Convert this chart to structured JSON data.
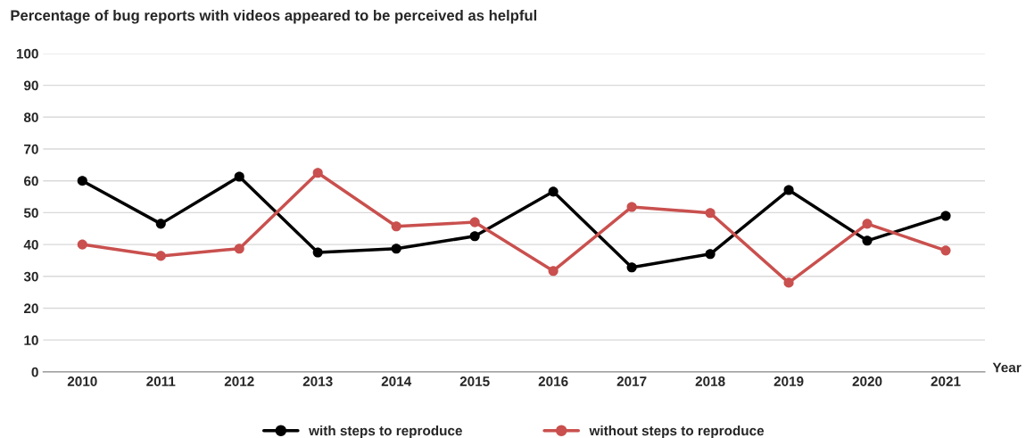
{
  "chart_data": {
    "type": "line",
    "title": "Percentage of bug reports with videos appeared to be perceived as helpful",
    "xlabel": "Year",
    "categories": [
      "2010",
      "2011",
      "2012",
      "2013",
      "2014",
      "2015",
      "2016",
      "2017",
      "2018",
      "2019",
      "2020",
      "2021"
    ],
    "series": [
      {
        "name": "with steps to reproduce",
        "color": "#000000",
        "values": [
          60,
          46.5,
          61.3,
          37.5,
          38.7,
          42.6,
          56.6,
          32.8,
          37,
          57.1,
          41.2,
          49
        ]
      },
      {
        "name": "without steps to reproduce",
        "color": "#c9504e",
        "values": [
          40,
          36.4,
          38.7,
          62.5,
          45.7,
          47,
          31.7,
          51.8,
          49.9,
          28,
          46.5,
          38.1
        ]
      }
    ],
    "ylim": [
      0,
      100
    ],
    "yticks": [
      0,
      10,
      20,
      30,
      40,
      50,
      60,
      70,
      80,
      90,
      100
    ],
    "grid": "y",
    "legend": "bottom",
    "marker": "circle",
    "line_style": "solid"
  }
}
